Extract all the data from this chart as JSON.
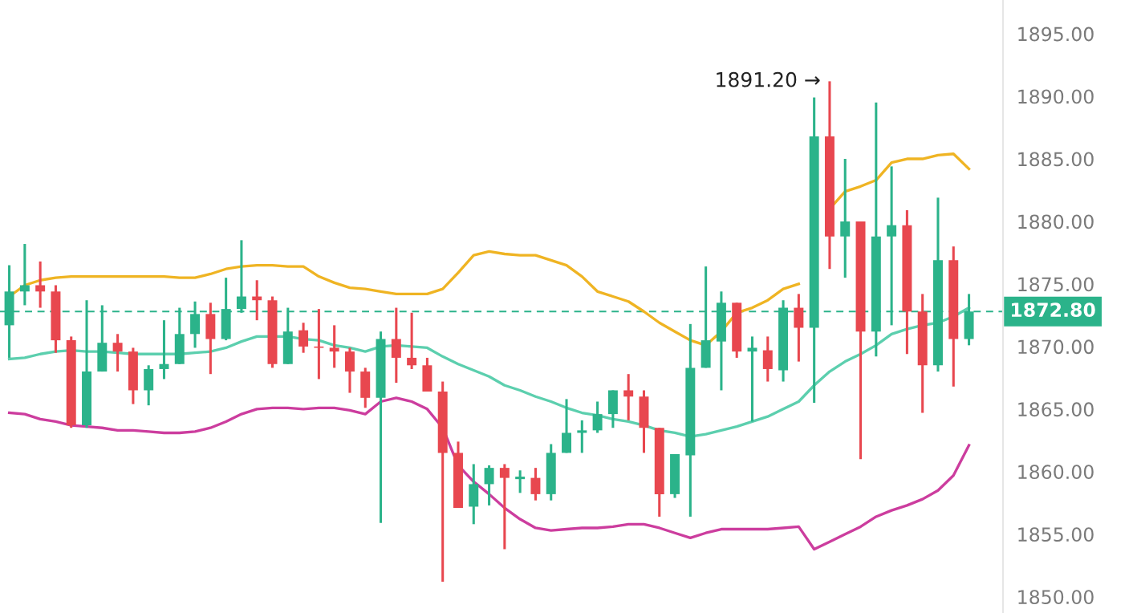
{
  "chart_data": {
    "type": "candlestick",
    "categories": [
      null,
      null,
      null,
      null,
      null,
      null,
      null,
      null,
      null,
      null,
      null,
      null,
      null,
      null,
      null,
      null,
      null,
      null,
      null,
      null,
      null,
      null,
      null,
      null,
      null,
      null,
      null,
      null,
      null,
      null,
      null,
      null,
      null,
      null,
      null,
      null,
      null,
      null,
      null,
      null,
      null,
      null,
      null,
      null,
      null,
      null,
      null,
      null,
      null,
      null,
      null,
      null,
      null,
      null,
      null,
      null,
      null,
      null,
      null,
      null,
      null,
      null,
      null
    ],
    "ohlc": [
      [
        1871.7,
        1876.5,
        1869.1,
        1874.4
      ],
      [
        1874.4,
        1878.2,
        1873.3,
        1874.9
      ],
      [
        1874.9,
        1876.8,
        1873.1,
        1874.4
      ],
      [
        1874.4,
        1874.9,
        1869.5,
        1870.5
      ],
      [
        1870.5,
        1870.8,
        1863.5,
        1863.7
      ],
      [
        1863.7,
        1873.7,
        1863.5,
        1868.0
      ],
      [
        1868.0,
        1873.3,
        1868.0,
        1870.3
      ],
      [
        1870.3,
        1871.0,
        1868.0,
        1869.6
      ],
      [
        1869.6,
        1869.9,
        1865.4,
        1866.5
      ],
      [
        1866.5,
        1868.5,
        1865.3,
        1868.2
      ],
      [
        1868.2,
        1872.1,
        1867.4,
        1868.6
      ],
      [
        1868.6,
        1873.1,
        1868.6,
        1871.0
      ],
      [
        1871.0,
        1873.6,
        1869.9,
        1872.6
      ],
      [
        1872.6,
        1873.5,
        1867.8,
        1870.6
      ],
      [
        1870.6,
        1875.5,
        1870.5,
        1873.0
      ],
      [
        1873.0,
        1878.5,
        1872.7,
        1874.0
      ],
      [
        1874.0,
        1875.3,
        1872.1,
        1873.7
      ],
      [
        1873.7,
        1874.0,
        1868.3,
        1868.6
      ],
      [
        1868.6,
        1873.1,
        1868.6,
        1871.2
      ],
      [
        1871.3,
        1871.9,
        1869.5,
        1870.0
      ],
      [
        1870.0,
        1873.0,
        1867.4,
        1869.9
      ],
      [
        1869.9,
        1871.7,
        1868.3,
        1869.6
      ],
      [
        1869.6,
        1869.9,
        1866.3,
        1868.0
      ],
      [
        1868.0,
        1868.3,
        1865.1,
        1865.9
      ],
      [
        1865.9,
        1871.2,
        1855.9,
        1870.6
      ],
      [
        1870.6,
        1873.1,
        1867.1,
        1869.1
      ],
      [
        1869.1,
        1872.7,
        1868.2,
        1868.5
      ],
      [
        1868.5,
        1869.1,
        1866.4,
        1866.4
      ],
      [
        1866.4,
        1867.2,
        1851.2,
        1861.5
      ],
      [
        1861.5,
        1862.4,
        1857.1,
        1857.1
      ],
      [
        1857.2,
        1860.6,
        1855.8,
        1859.0
      ],
      [
        1859.0,
        1860.5,
        1857.3,
        1860.3
      ],
      [
        1860.3,
        1860.6,
        1853.8,
        1859.5
      ],
      [
        1859.4,
        1860.1,
        1858.3,
        1859.6
      ],
      [
        1859.5,
        1860.3,
        1857.7,
        1858.2
      ],
      [
        1858.2,
        1862.2,
        1857.7,
        1861.5
      ],
      [
        1861.5,
        1865.8,
        1861.5,
        1863.1
      ],
      [
        1863.1,
        1864.1,
        1861.5,
        1863.3
      ],
      [
        1863.3,
        1865.6,
        1863.1,
        1864.6
      ],
      [
        1864.6,
        1866.5,
        1863.5,
        1866.5
      ],
      [
        1866.5,
        1867.8,
        1864.1,
        1866.0
      ],
      [
        1866.0,
        1866.5,
        1861.5,
        1863.5
      ],
      [
        1863.5,
        1863.5,
        1856.4,
        1858.2
      ],
      [
        1858.2,
        1861.4,
        1857.9,
        1861.4
      ],
      [
        1861.3,
        1871.8,
        1856.4,
        1868.3
      ],
      [
        1868.3,
        1876.4,
        1868.3,
        1870.5
      ],
      [
        1870.4,
        1874.4,
        1866.5,
        1873.5
      ],
      [
        1873.5,
        1873.5,
        1869.1,
        1869.6
      ],
      [
        1869.6,
        1870.8,
        1864.0,
        1869.9
      ],
      [
        1869.7,
        1870.8,
        1867.2,
        1868.2
      ],
      [
        1868.1,
        1873.7,
        1867.2,
        1873.1
      ],
      [
        1873.1,
        1874.2,
        1868.8,
        1871.5
      ],
      [
        1871.5,
        1889.9,
        1865.5,
        1886.8
      ],
      [
        1886.8,
        1891.2,
        1876.2,
        1878.8
      ],
      [
        1878.8,
        1885.0,
        1875.5,
        1880.0
      ],
      [
        1880.0,
        1880.0,
        1861.0,
        1871.2
      ],
      [
        1871.2,
        1889.5,
        1869.2,
        1878.8
      ],
      [
        1878.8,
        1884.4,
        1871.7,
        1879.7
      ],
      [
        1879.7,
        1880.9,
        1869.4,
        1872.8
      ],
      [
        1872.8,
        1874.2,
        1864.7,
        1868.5
      ],
      [
        1868.5,
        1881.9,
        1868.0,
        1876.9
      ],
      [
        1876.9,
        1878.0,
        1866.8,
        1870.6
      ],
      [
        1870.6,
        1874.2,
        1870.1,
        1872.8
      ]
    ],
    "colors": [
      "#2bb38a",
      "#2bb38a",
      "#e8474f",
      "#e8474f",
      "#e8474f",
      "#2bb38a",
      "#2bb38a",
      "#e8474f",
      "#e8474f",
      "#2bb38a",
      "#2bb38a",
      "#2bb38a",
      "#2bb38a",
      "#e8474f",
      "#2bb38a",
      "#2bb38a",
      "#e8474f",
      "#e8474f",
      "#2bb38a",
      "#e8474f",
      "#e8474f",
      "#e8474f",
      "#e8474f",
      "#e8474f",
      "#2bb38a",
      "#e8474f",
      "#e8474f",
      "#e8474f",
      "#e8474f",
      "#e8474f",
      "#2bb38a",
      "#2bb38a",
      "#e8474f",
      "#2bb38a",
      "#e8474f",
      "#2bb38a",
      "#2bb38a",
      "#2bb38a",
      "#2bb38a",
      "#2bb38a",
      "#e8474f",
      "#e8474f",
      "#e8474f",
      "#2bb38a",
      "#2bb38a",
      "#2bb38a",
      "#2bb38a",
      "#e8474f",
      "#2bb38a",
      "#e8474f",
      "#2bb38a",
      "#e8474f",
      "#2bb38a",
      "#e8474f",
      "#2bb38a",
      "#e8474f",
      "#2bb38a",
      "#2bb38a",
      "#e8474f",
      "#e8474f",
      "#2bb38a",
      "#e8474f",
      "#2bb38a"
    ],
    "series": [
      {
        "type": "line",
        "color": "#efb423",
        "values": [
          1874.0,
          1874.9,
          1875.3,
          1875.5,
          1875.6,
          1875.6,
          1875.6,
          1875.6,
          1875.6,
          1875.6,
          1875.6,
          1875.5,
          1875.5,
          1875.8,
          1876.2,
          1876.4,
          1876.5,
          1876.5,
          1876.4,
          1876.4,
          1875.6,
          1875.1,
          1874.7,
          1874.6,
          1874.4,
          1874.2,
          1874.2,
          1874.2,
          1874.6,
          1875.9,
          1877.3,
          1877.6,
          1877.4,
          1877.3,
          1877.3,
          1876.9,
          1876.5,
          1875.6,
          1874.4,
          1874.0,
          1873.6,
          1872.8,
          1871.9,
          1871.2,
          1870.5,
          1870.1,
          1871.2,
          1872.7,
          1873.1,
          1873.7,
          1874.6,
          1875.0,
          null,
          1881.0,
          1882.4,
          1882.8,
          1883.3,
          1884.7,
          1885.0,
          1885.0,
          1885.3,
          1885.4,
          1884.2
        ]
      },
      {
        "type": "line",
        "color": "#5ccfae",
        "values": [
          1869.0,
          1869.1,
          1869.4,
          1869.6,
          1869.7,
          1869.6,
          1869.6,
          1869.5,
          1869.4,
          1869.4,
          1869.4,
          1869.4,
          1869.5,
          1869.6,
          1869.9,
          1870.4,
          1870.8,
          1870.8,
          1870.8,
          1870.6,
          1870.5,
          1870.1,
          1869.9,
          1869.6,
          1870.0,
          1870.1,
          1870.0,
          1869.9,
          1869.2,
          1868.6,
          1868.1,
          1867.6,
          1866.9,
          1866.5,
          1866.0,
          1865.6,
          1865.1,
          1864.7,
          1864.5,
          1864.2,
          1864.0,
          1863.7,
          1863.3,
          1863.1,
          1862.8,
          1863.0,
          1863.3,
          1863.6,
          1864.0,
          1864.4,
          1865.0,
          1865.6,
          1866.9,
          1868.0,
          1868.8,
          1869.4,
          1870.1,
          1871.0,
          1871.4,
          1871.7,
          1871.9,
          1872.4,
          1873.1
        ]
      },
      {
        "type": "line",
        "color": "#cc3d9e",
        "values": [
          1864.7,
          1864.6,
          1864.2,
          1864.0,
          1863.7,
          1863.6,
          1863.5,
          1863.3,
          1863.3,
          1863.2,
          1863.1,
          1863.1,
          1863.2,
          1863.5,
          1864.0,
          1864.6,
          1865.0,
          1865.1,
          1865.1,
          1865.0,
          1865.1,
          1865.1,
          1864.9,
          1864.6,
          1865.6,
          1865.9,
          1865.6,
          1865.0,
          1863.5,
          1860.5,
          1859.2,
          1858.2,
          1857.1,
          1856.2,
          1855.5,
          1855.3,
          1855.4,
          1855.5,
          1855.5,
          1855.6,
          1855.8,
          1855.8,
          1855.5,
          1855.1,
          1854.7,
          1855.1,
          1855.4,
          1855.4,
          1855.4,
          1855.4,
          1855.5,
          1855.6,
          1853.8,
          1854.4,
          1855.0,
          1855.6,
          1856.4,
          1856.9,
          1857.3,
          1857.8,
          1858.5,
          1859.7,
          1862.1
        ]
      }
    ],
    "ylim": [
      1848.7,
      1897.7
    ],
    "yticks": [
      {
        "value": 1850,
        "label": "1850.00"
      },
      {
        "value": 1855,
        "label": "1855.00"
      },
      {
        "value": 1860,
        "label": "1860.00"
      },
      {
        "value": 1865,
        "label": "1865.00"
      },
      {
        "value": 1870,
        "label": "1870.00"
      },
      {
        "value": 1875,
        "label": "1875.00"
      },
      {
        "value": 1880,
        "label": "1880.00"
      },
      {
        "value": 1885,
        "label": "1885.00"
      },
      {
        "value": 1890,
        "label": "1890.00"
      },
      {
        "value": 1895,
        "label": "1895.00"
      }
    ],
    "ref_lines": [
      {
        "axis": "y",
        "value": 1872.8,
        "label": "1872.80",
        "color": "#2bb38a",
        "line_style": "dashed"
      }
    ],
    "annotations": [
      "1891.20 →"
    ],
    "tick_labels": "y",
    "grid": false,
    "legend": false
  }
}
